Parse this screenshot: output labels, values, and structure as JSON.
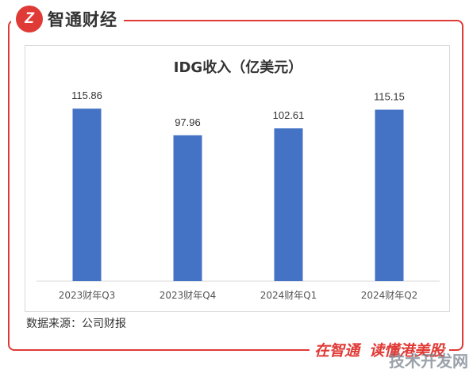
{
  "brand": {
    "logo_letter": "Z",
    "name": "智通财经"
  },
  "chart_data": {
    "type": "bar",
    "title": "IDG收入（亿美元）",
    "categories": [
      "2023财年Q3",
      "2023财年Q4",
      "2024财年Q1",
      "2024财年Q2"
    ],
    "series": [
      {
        "values": [
          115.86,
          97.96,
          102.61,
          115.15
        ]
      }
    ],
    "ylim": [
      0,
      125
    ],
    "grid": false,
    "bar_color": "#4472c4"
  },
  "source": "数据来源：公司财报",
  "slogan": {
    "part1": "在智通",
    "part2": "读懂港美股"
  },
  "watermark": "技术开发网",
  "colors": {
    "accent": "#e03a36"
  }
}
